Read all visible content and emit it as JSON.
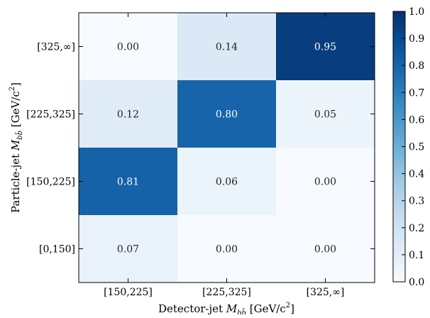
{
  "chart_data": {
    "type": "heatmap",
    "x_categories": [
      "[150,225]",
      "[225,325]",
      "[325,∞]"
    ],
    "y_categories": [
      "[0,150]",
      "[150,225]",
      "[225,325]",
      "[325,∞]"
    ],
    "values": [
      [
        0.0,
        0.14,
        0.95
      ],
      [
        0.12,
        0.8,
        0.05
      ],
      [
        0.81,
        0.06,
        0.0
      ],
      [
        0.07,
        0.0,
        0.0
      ]
    ],
    "value_labels": [
      [
        "0.00",
        "0.14",
        "0.95"
      ],
      [
        "0.12",
        "0.80",
        "0.05"
      ],
      [
        "0.81",
        "0.06",
        "0.00"
      ],
      [
        "0.07",
        "0.00",
        "0.00"
      ]
    ],
    "xlabel": {
      "prefix": "Detector-jet ",
      "symbol": "M",
      "sub": "bb̄",
      "suffix": " [GeV/c",
      "sup": "2",
      "end": "]"
    },
    "ylabel": {
      "prefix": "Particle-jet ",
      "symbol": "M",
      "sub": "bb̄",
      "suffix": " [GeV/c",
      "sup": "2",
      "end": "]"
    },
    "colorbar": {
      "range": [
        0.0,
        1.0
      ],
      "ticks": [
        "0.0",
        "0.1",
        "0.2",
        "0.3",
        "0.4",
        "0.5",
        "0.6",
        "0.7",
        "0.8",
        "0.9",
        "1.0"
      ],
      "colormap": "Blues"
    },
    "colors": {
      "low": "#f7fbff",
      "high": "#08306b",
      "text_dark": "#222222",
      "text_light": "#ffffff"
    }
  }
}
